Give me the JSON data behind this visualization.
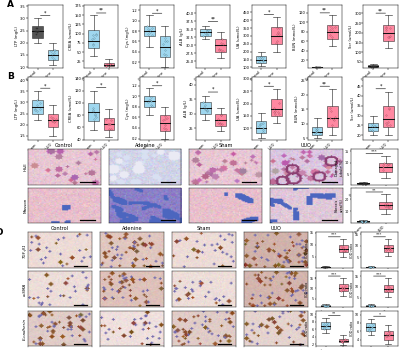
{
  "panel_A": {
    "label": "A",
    "plots": [
      {
        "ylabel": "LTP (mg/L)",
        "groups": [
          "Control",
          "Adenine"
        ],
        "colors": [
          "#2B2B2B",
          "#87CEEB"
        ],
        "medians": [
          2.5,
          1.5
        ],
        "q1": [
          2.2,
          1.3
        ],
        "q3": [
          2.7,
          1.7
        ],
        "whislo": [
          2.0,
          1.1
        ],
        "whishi": [
          3.0,
          2.0
        ],
        "sig": "*"
      },
      {
        "ylabel": "CREA (umol/L)",
        "groups": [
          "Control",
          "Adenine"
        ],
        "colors": [
          "#87CEEB",
          "#FF6B8A"
        ],
        "medians": [
          80,
          15
        ],
        "q1": [
          60,
          12
        ],
        "q3": [
          110,
          20
        ],
        "whislo": [
          40,
          8
        ],
        "whishi": [
          150,
          30
        ],
        "sig": "**"
      },
      {
        "ylabel": "Cys (mg/L)",
        "groups": [
          "Control",
          "Adenine"
        ],
        "colors": [
          "#87CEEB",
          "#87CEEB"
        ],
        "medians": [
          0.8,
          0.5
        ],
        "q1": [
          0.7,
          0.3
        ],
        "q3": [
          0.9,
          0.7
        ],
        "whislo": [
          0.5,
          0.1
        ],
        "whishi": [
          1.1,
          0.9
        ],
        "sig": "*"
      },
      {
        "ylabel": "ALB (g/L)",
        "groups": [
          "Control",
          "Adenine"
        ],
        "colors": [
          "#87CEEB",
          "#FF6B8A"
        ],
        "medians": [
          34,
          30
        ],
        "q1": [
          33,
          28
        ],
        "q3": [
          35,
          32
        ],
        "whislo": [
          32,
          26
        ],
        "whishi": [
          36,
          34
        ],
        "sig": "**"
      },
      {
        "ylabel": "UA (umol/L)",
        "groups": [
          "Control",
          "Adenine"
        ],
        "colors": [
          "#87CEEB",
          "#FF6B8A"
        ],
        "medians": [
          150,
          300
        ],
        "q1": [
          130,
          250
        ],
        "q3": [
          170,
          360
        ],
        "whislo": [
          110,
          200
        ],
        "whishi": [
          200,
          420
        ],
        "sig": "*"
      },
      {
        "ylabel": "BUN (mmol/L)",
        "groups": [
          "Control",
          "Adenine"
        ],
        "colors": [
          "#2B2B2B",
          "#FF6B8A"
        ],
        "medians": [
          5,
          80
        ],
        "q1": [
          4.5,
          65
        ],
        "q3": [
          5.5,
          95
        ],
        "whislo": [
          4.0,
          50
        ],
        "whishi": [
          6.0,
          115
        ],
        "sig": "**"
      },
      {
        "ylabel": "Scr (umol/L)",
        "groups": [
          "Control",
          "Adenine"
        ],
        "colors": [
          "#2B2B2B",
          "#FF6B8A"
        ],
        "medians": [
          28,
          200
        ],
        "q1": [
          25,
          160
        ],
        "q3": [
          32,
          240
        ],
        "whislo": [
          22,
          120
        ],
        "whishi": [
          38,
          290
        ],
        "sig": "**"
      }
    ]
  },
  "panel_B": {
    "label": "B",
    "plots": [
      {
        "ylabel": "LTP (mg/L)",
        "groups": [
          "Sham",
          "UUO"
        ],
        "colors": [
          "#87CEEB",
          "#FF6B8A"
        ],
        "medians": [
          2.8,
          2.2
        ],
        "q1": [
          2.5,
          1.9
        ],
        "q3": [
          3.1,
          2.5
        ],
        "whislo": [
          2.2,
          1.5
        ],
        "whishi": [
          3.5,
          2.9
        ],
        "sig": "*"
      },
      {
        "ylabel": "CREA (umol/L)",
        "groups": [
          "Sham",
          "UUO"
        ],
        "colors": [
          "#87CEEB",
          "#FF6B8A"
        ],
        "medians": [
          85,
          65
        ],
        "q1": [
          70,
          55
        ],
        "q3": [
          100,
          75
        ],
        "whislo": [
          55,
          45
        ],
        "whishi": [
          120,
          90
        ],
        "sig": "*"
      },
      {
        "ylabel": "Cys (mg/L)",
        "groups": [
          "Sham",
          "UUO"
        ],
        "colors": [
          "#87CEEB",
          "#FF6B8A"
        ],
        "medians": [
          0.9,
          0.5
        ],
        "q1": [
          0.8,
          0.35
        ],
        "q3": [
          1.0,
          0.65
        ],
        "whislo": [
          0.65,
          0.2
        ],
        "whishi": [
          1.15,
          0.8
        ],
        "sig": "*"
      },
      {
        "ylabel": "ALB (g/L)",
        "groups": [
          "Sham",
          "UUO"
        ],
        "colors": [
          "#87CEEB",
          "#FF6B8A"
        ],
        "medians": [
          32,
          28
        ],
        "q1": [
          30,
          26
        ],
        "q3": [
          34,
          30
        ],
        "whislo": [
          28,
          24
        ],
        "whishi": [
          36,
          32
        ],
        "sig": "*"
      },
      {
        "ylabel": "UA (umol/L)",
        "groups": [
          "Sham",
          "UUO"
        ],
        "colors": [
          "#87CEEB",
          "#FF6B8A"
        ],
        "medians": [
          100,
          180
        ],
        "q1": [
          80,
          150
        ],
        "q3": [
          130,
          220
        ],
        "whislo": [
          60,
          120
        ],
        "whishi": [
          160,
          260
        ],
        "sig": "*"
      },
      {
        "ylabel": "BUN (mmol/L)",
        "groups": [
          "Sham",
          "UUO"
        ],
        "colors": [
          "#87CEEB",
          "#FF6B8A"
        ],
        "medians": [
          7,
          12
        ],
        "q1": [
          6,
          9
        ],
        "q3": [
          9,
          16
        ],
        "whislo": [
          5,
          6
        ],
        "whishi": [
          12,
          22
        ],
        "sig": "**"
      },
      {
        "ylabel": "Scr (umol/L)",
        "groups": [
          "Sham",
          "UUO"
        ],
        "colors": [
          "#87CEEB",
          "#FF6B8A"
        ],
        "medians": [
          24,
          28
        ],
        "q1": [
          22,
          24
        ],
        "q3": [
          26,
          35
        ],
        "whislo": [
          20,
          20
        ],
        "whishi": [
          30,
          42
        ],
        "sig": "*"
      }
    ]
  },
  "panel_C_col_labels": [
    "Control",
    "Adenine",
    "Sham",
    "UUO"
  ],
  "panel_D_row_labels": [
    "TGF-β1",
    "α-SMA",
    "E-cadherin"
  ],
  "background_color": "#ffffff"
}
